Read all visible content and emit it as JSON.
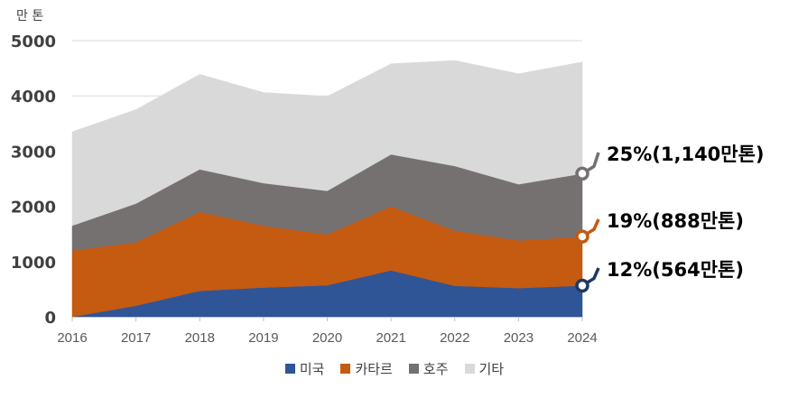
{
  "chart_data": {
    "type": "area",
    "stacked": true,
    "unit_label": "만 톤",
    "x": [
      "2016",
      "2017",
      "2018",
      "2019",
      "2020",
      "2021",
      "2022",
      "2023",
      "2024"
    ],
    "ylim": [
      0,
      5000
    ],
    "yticks": [
      0,
      1000,
      2000,
      3000,
      4000,
      5000
    ],
    "grid": true,
    "legend_position": "bottom",
    "series": [
      {
        "name": "미국",
        "color": "#2f5597",
        "values": [
          0,
          200,
          470,
          530,
          570,
          840,
          560,
          520,
          564
        ]
      },
      {
        "name": "카타르",
        "color": "#c55a11",
        "values": [
          1200,
          1150,
          1430,
          1120,
          920,
          1160,
          1000,
          860,
          888
        ]
      },
      {
        "name": "호주",
        "color": "#767171",
        "values": [
          450,
          700,
          770,
          770,
          790,
          940,
          1170,
          1020,
          1140
        ]
      },
      {
        "name": "기타",
        "color": "#d9d9d9",
        "values": [
          1700,
          1700,
          1720,
          1640,
          1710,
          1640,
          1910,
          2000,
          2020
        ]
      }
    ],
    "annotations": [
      {
        "series": "호주",
        "text": "25%(1,140만톤)",
        "color": "#767171"
      },
      {
        "series": "카타르",
        "text": "19%(888만톤)",
        "color": "#c55a11"
      },
      {
        "series": "미국",
        "text": "12%(564만톤)",
        "color": "#1f3864"
      }
    ]
  }
}
